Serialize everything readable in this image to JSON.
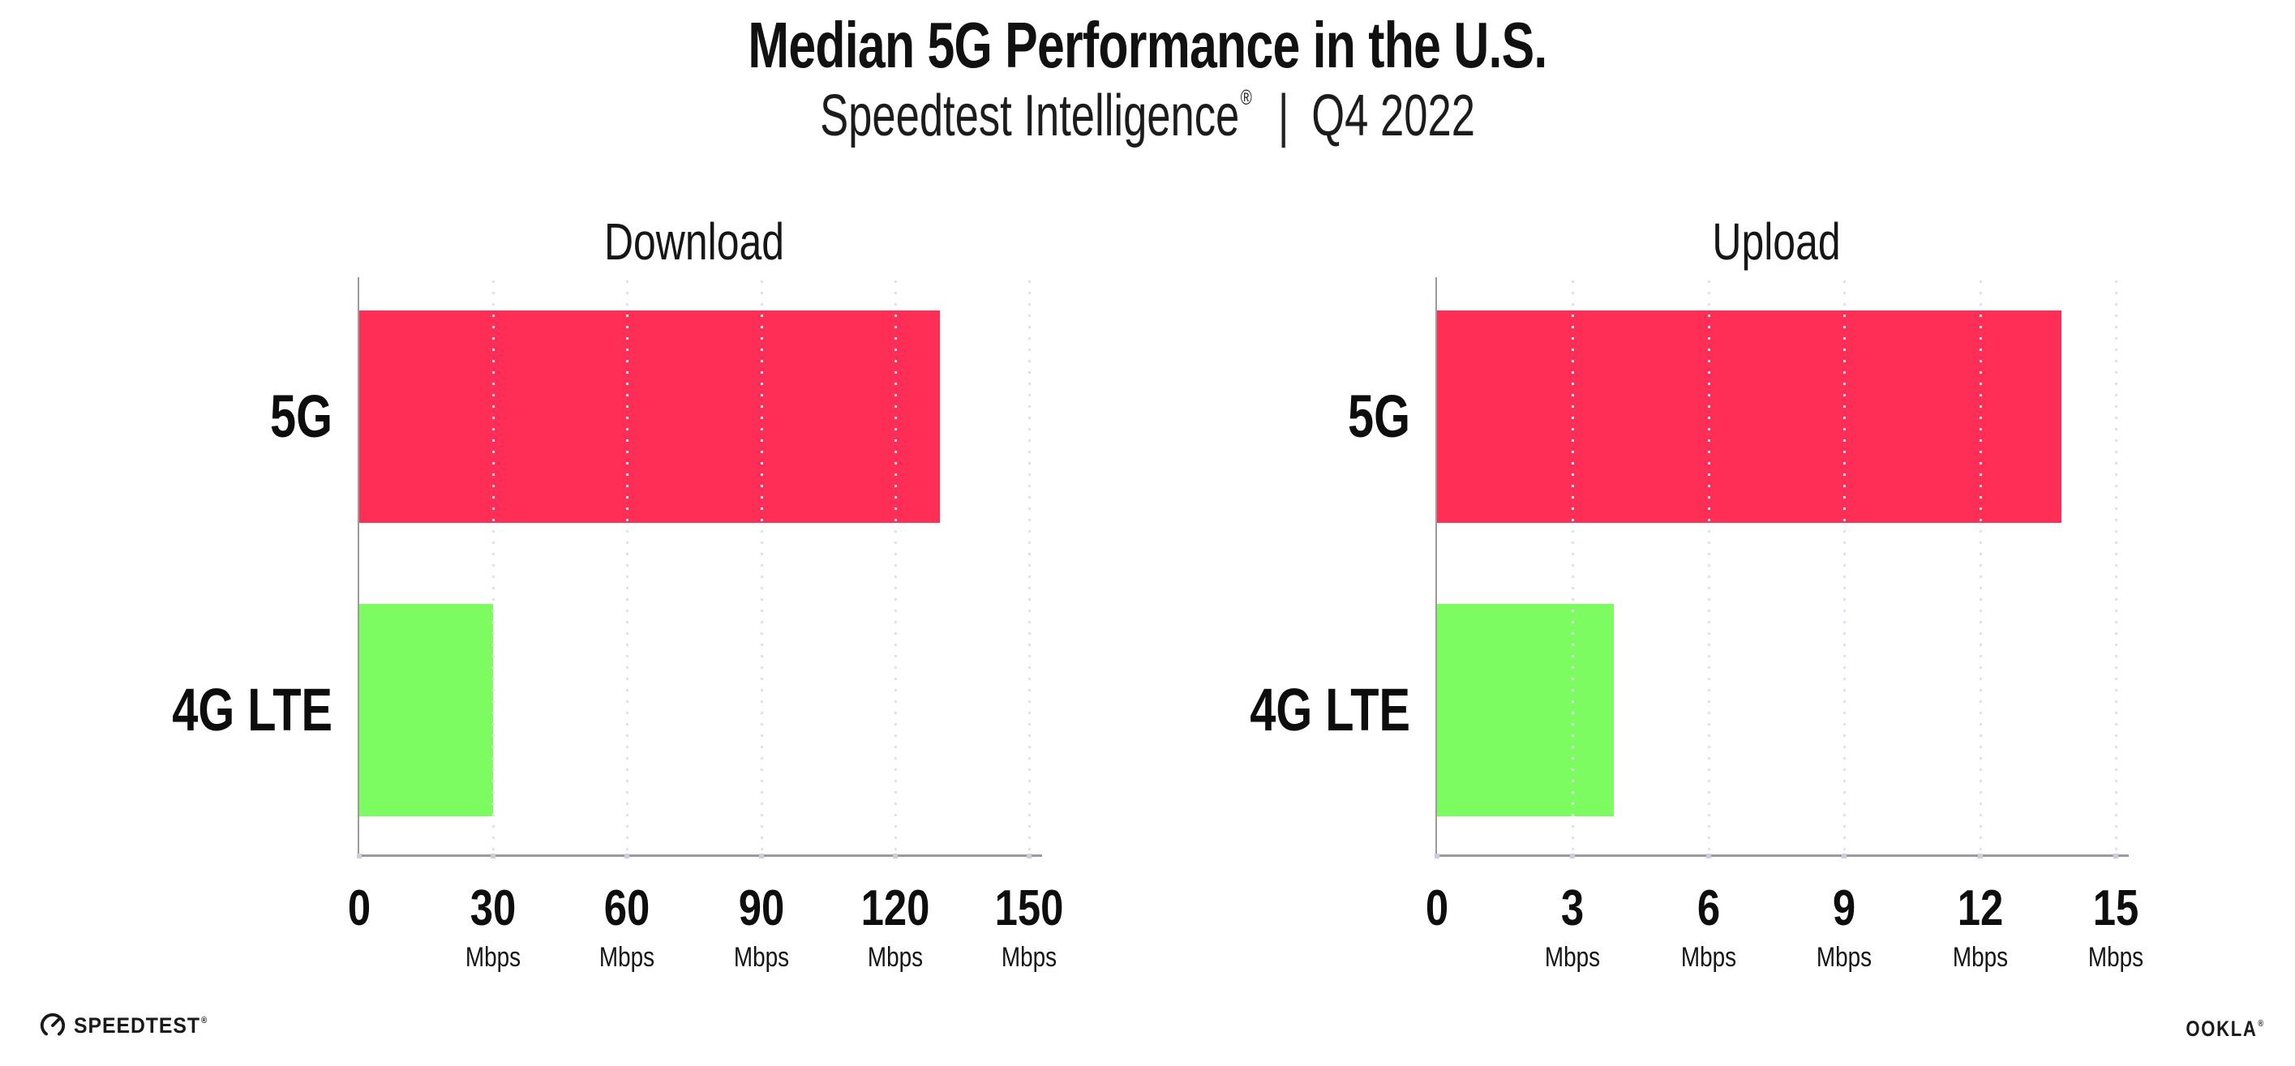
{
  "header": {
    "title": "Median 5G Performance in the U.S.",
    "subtitle_product": "Speedtest Intelligence",
    "subtitle_reg": "®",
    "subtitle_separator": "|",
    "subtitle_period": "Q4 2022"
  },
  "chart_data": [
    {
      "type": "bar",
      "orientation": "horizontal",
      "title": "Download",
      "categories": [
        "5G",
        "4G LTE"
      ],
      "values": [
        130,
        30
      ],
      "unit": "Mbps",
      "xlabel": "",
      "xlim": [
        0,
        150
      ],
      "xticks": [
        0,
        30,
        60,
        90,
        120,
        150
      ],
      "bar_colors": [
        "#FF2E56",
        "#7DFC61"
      ],
      "grid": "vertical-dotted",
      "legend": "none"
    },
    {
      "type": "bar",
      "orientation": "horizontal",
      "title": "Upload",
      "categories": [
        "5G",
        "4G LTE"
      ],
      "values": [
        13.8,
        3.9
      ],
      "unit": "Mbps",
      "xlabel": "",
      "xlim": [
        0,
        15
      ],
      "xticks": [
        0,
        3,
        6,
        9,
        12,
        15
      ],
      "bar_colors": [
        "#FF2E56",
        "#7DFC61"
      ],
      "grid": "vertical-dotted",
      "legend": "none"
    }
  ],
  "footer": {
    "speedtest_logo_text": "SPEEDTEST",
    "speedtest_trademark": "®",
    "ookla_logo_text": "OOKLA",
    "ookla_trademark": "®"
  },
  "colors": {
    "bar_5g": "#FF2E56",
    "bar_4g_lte": "#7DFC61",
    "axis_line": "#9B9B9B",
    "gridline_dots": "#DEE2EE",
    "text": "#121212"
  }
}
